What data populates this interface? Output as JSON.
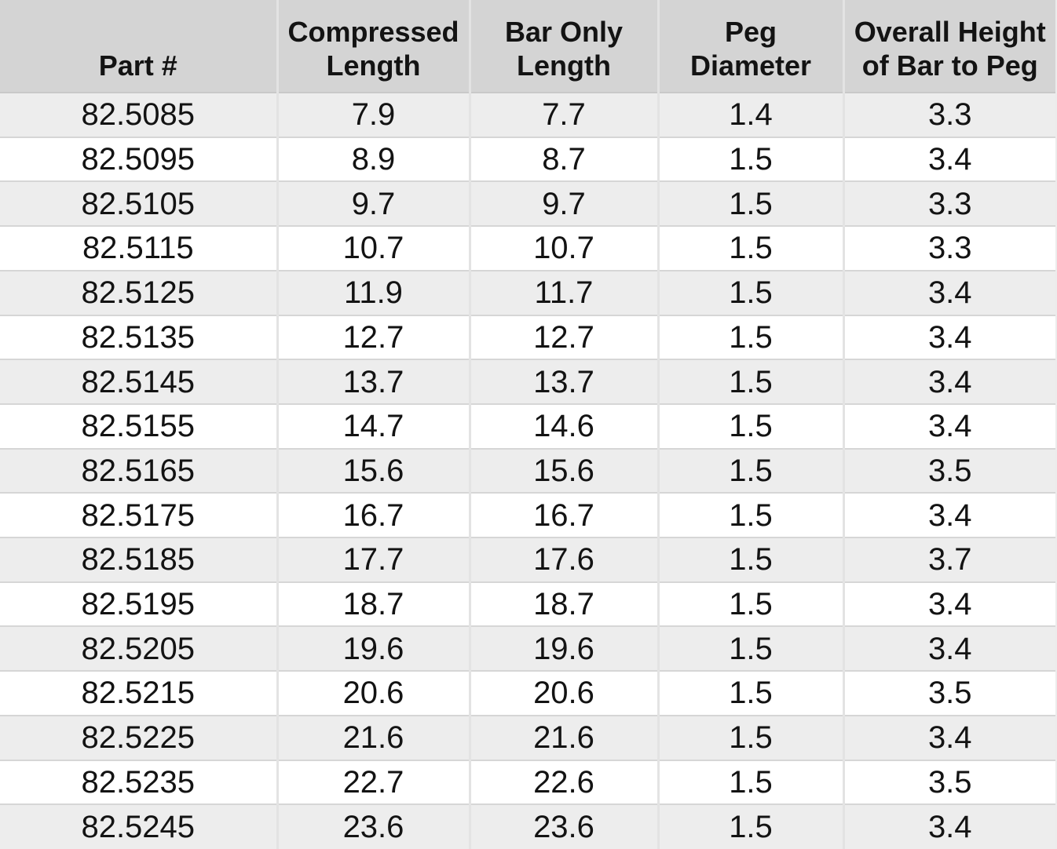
{
  "chart_data": {
    "type": "table",
    "title": "",
    "columns": [
      {
        "id": "part-number",
        "label": "Part #"
      },
      {
        "id": "compressed-length",
        "label": "Compressed\nLength"
      },
      {
        "id": "bar-only-length",
        "label": "Bar Only\nLength"
      },
      {
        "id": "peg-diameter",
        "label": "Peg\nDiameter"
      },
      {
        "id": "overall-height",
        "label": "Overall Height\nof Bar to Peg"
      }
    ],
    "rows": [
      [
        "82.5085",
        "7.9",
        "7.7",
        "1.4",
        "3.3"
      ],
      [
        "82.5095",
        "8.9",
        "8.7",
        "1.5",
        "3.4"
      ],
      [
        "82.5105",
        "9.7",
        "9.7",
        "1.5",
        "3.3"
      ],
      [
        "82.5115",
        "10.7",
        "10.7",
        "1.5",
        "3.3"
      ],
      [
        "82.5125",
        "11.9",
        "11.7",
        "1.5",
        "3.4"
      ],
      [
        "82.5135",
        "12.7",
        "12.7",
        "1.5",
        "3.4"
      ],
      [
        "82.5145",
        "13.7",
        "13.7",
        "1.5",
        "3.4"
      ],
      [
        "82.5155",
        "14.7",
        "14.6",
        "1.5",
        "3.4"
      ],
      [
        "82.5165",
        "15.6",
        "15.6",
        "1.5",
        "3.5"
      ],
      [
        "82.5175",
        "16.7",
        "16.7",
        "1.5",
        "3.4"
      ],
      [
        "82.5185",
        "17.7",
        "17.6",
        "1.5",
        "3.7"
      ],
      [
        "82.5195",
        "18.7",
        "18.7",
        "1.5",
        "3.4"
      ],
      [
        "82.5205",
        "19.6",
        "19.6",
        "1.5",
        "3.4"
      ],
      [
        "82.5215",
        "20.6",
        "20.6",
        "1.5",
        "3.5"
      ],
      [
        "82.5225",
        "21.6",
        "21.6",
        "1.5",
        "3.4"
      ],
      [
        "82.5235",
        "22.7",
        "22.6",
        "1.5",
        "3.5"
      ],
      [
        "82.5245",
        "23.6",
        "23.6",
        "1.5",
        "3.4"
      ]
    ]
  },
  "colors": {
    "header_bg": "#d4d4d4",
    "row_alt_bg": "#ededed",
    "row_bg": "#ffffff",
    "grid_line": "#d6d6d6",
    "column_line": "#e3e3e3",
    "header_divider": "#c8c8c8",
    "text": "#131313"
  }
}
